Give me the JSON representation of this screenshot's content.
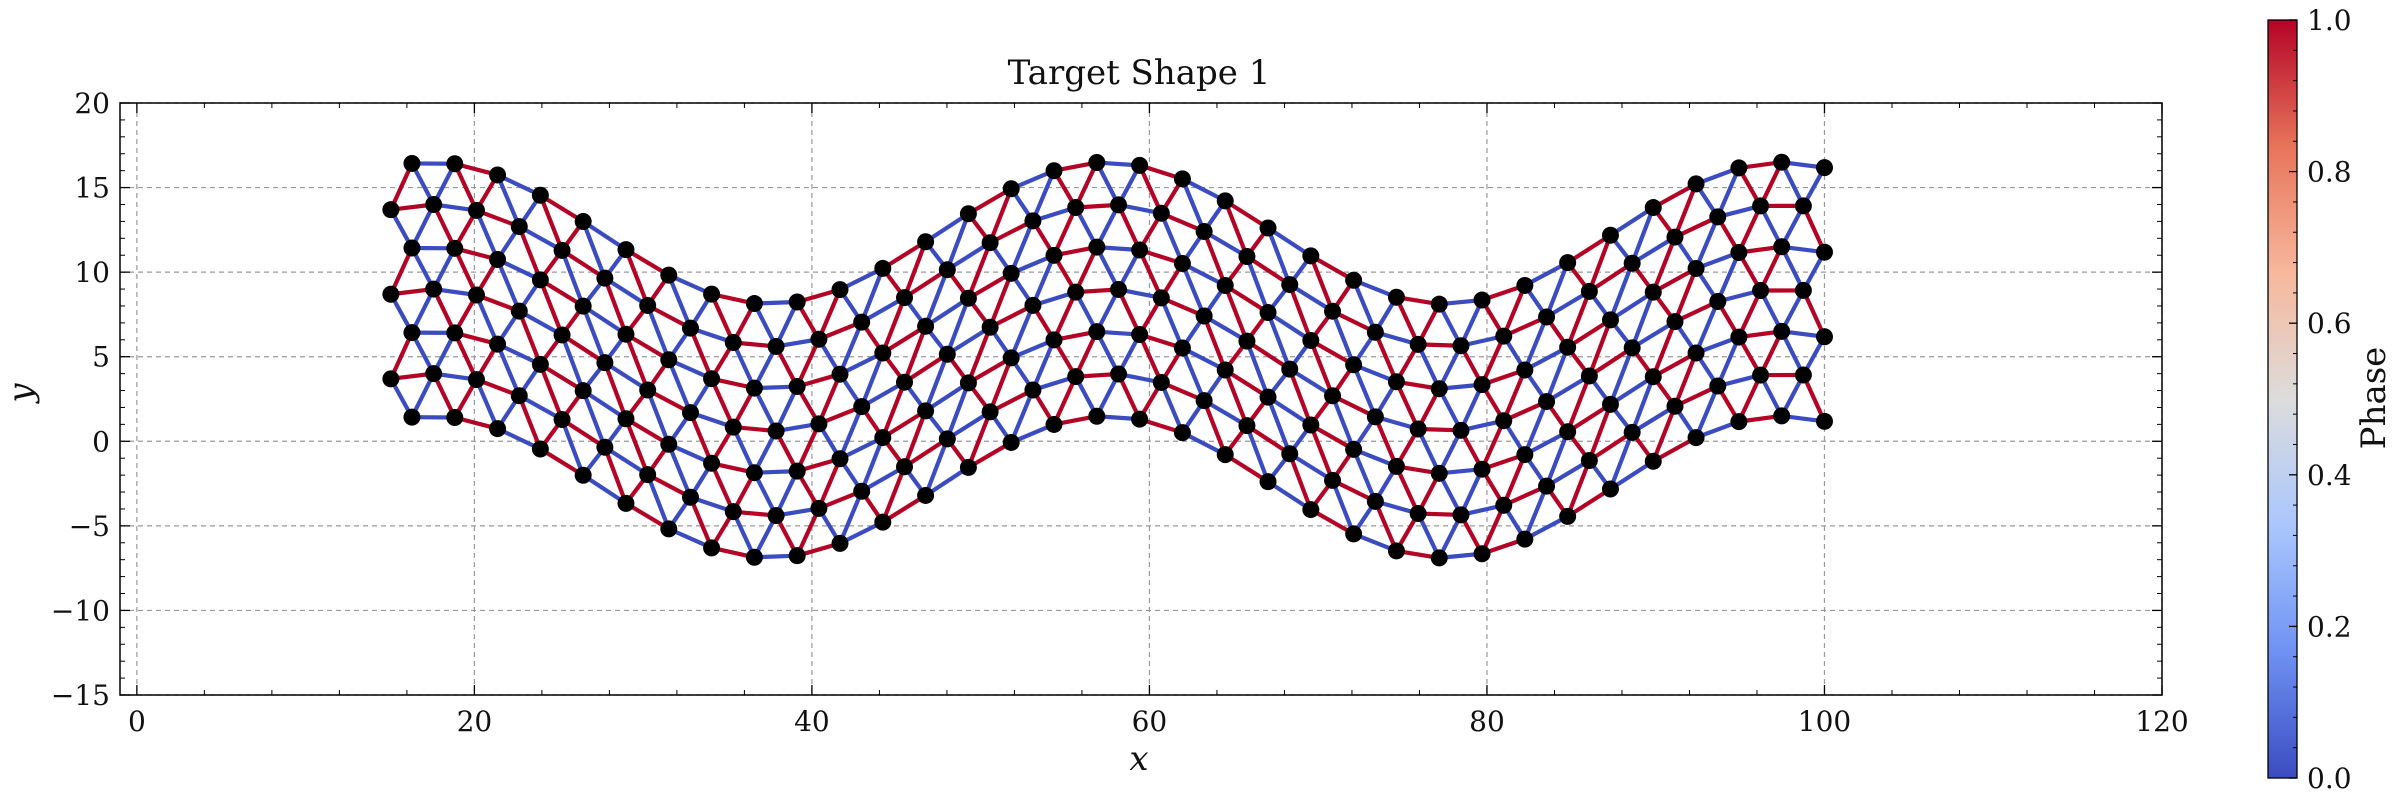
{
  "chart_data": {
    "type": "network",
    "title": "Target Shape 1",
    "xlabel": "x",
    "ylabel": "y",
    "xlim": [
      -1,
      120
    ],
    "ylim": [
      -15,
      20
    ],
    "xticks": [
      0,
      20,
      40,
      60,
      80,
      100,
      120
    ],
    "yticks": [
      -15,
      -10,
      -5,
      0,
      5,
      10,
      15,
      20
    ],
    "grid": true,
    "lattice": {
      "description": "triangular lattice bent into a sine wave",
      "rows": 7,
      "columns": 34,
      "x_start": 16.3,
      "x_end": 100,
      "row_offsets_y": [
        7.3,
        4.8,
        2.3,
        -0.2,
        -2.7,
        -5.2,
        -7.7
      ],
      "center_line": {
        "offset": 5.0,
        "amplitude": 4.2,
        "period": 40,
        "phase_x": 47.5
      },
      "edge_phase_pattern": "alternating 0/1 along rows; cross edges mixed"
    },
    "node_color": "#000000",
    "edge_colors": {
      "0": "#3a4cc0",
      "1": "#b40426"
    },
    "colorbar": {
      "label": "Phase",
      "ticks": [
        "0.0",
        "0.2",
        "0.4",
        "0.6",
        "0.8",
        "1.0"
      ],
      "range": [
        0,
        1
      ],
      "colormap": [
        "#3b4cc0",
        "#6f92f3",
        "#aac7fd",
        "#dddcdc",
        "#f7b89c",
        "#e7745b",
        "#b40426"
      ]
    }
  }
}
